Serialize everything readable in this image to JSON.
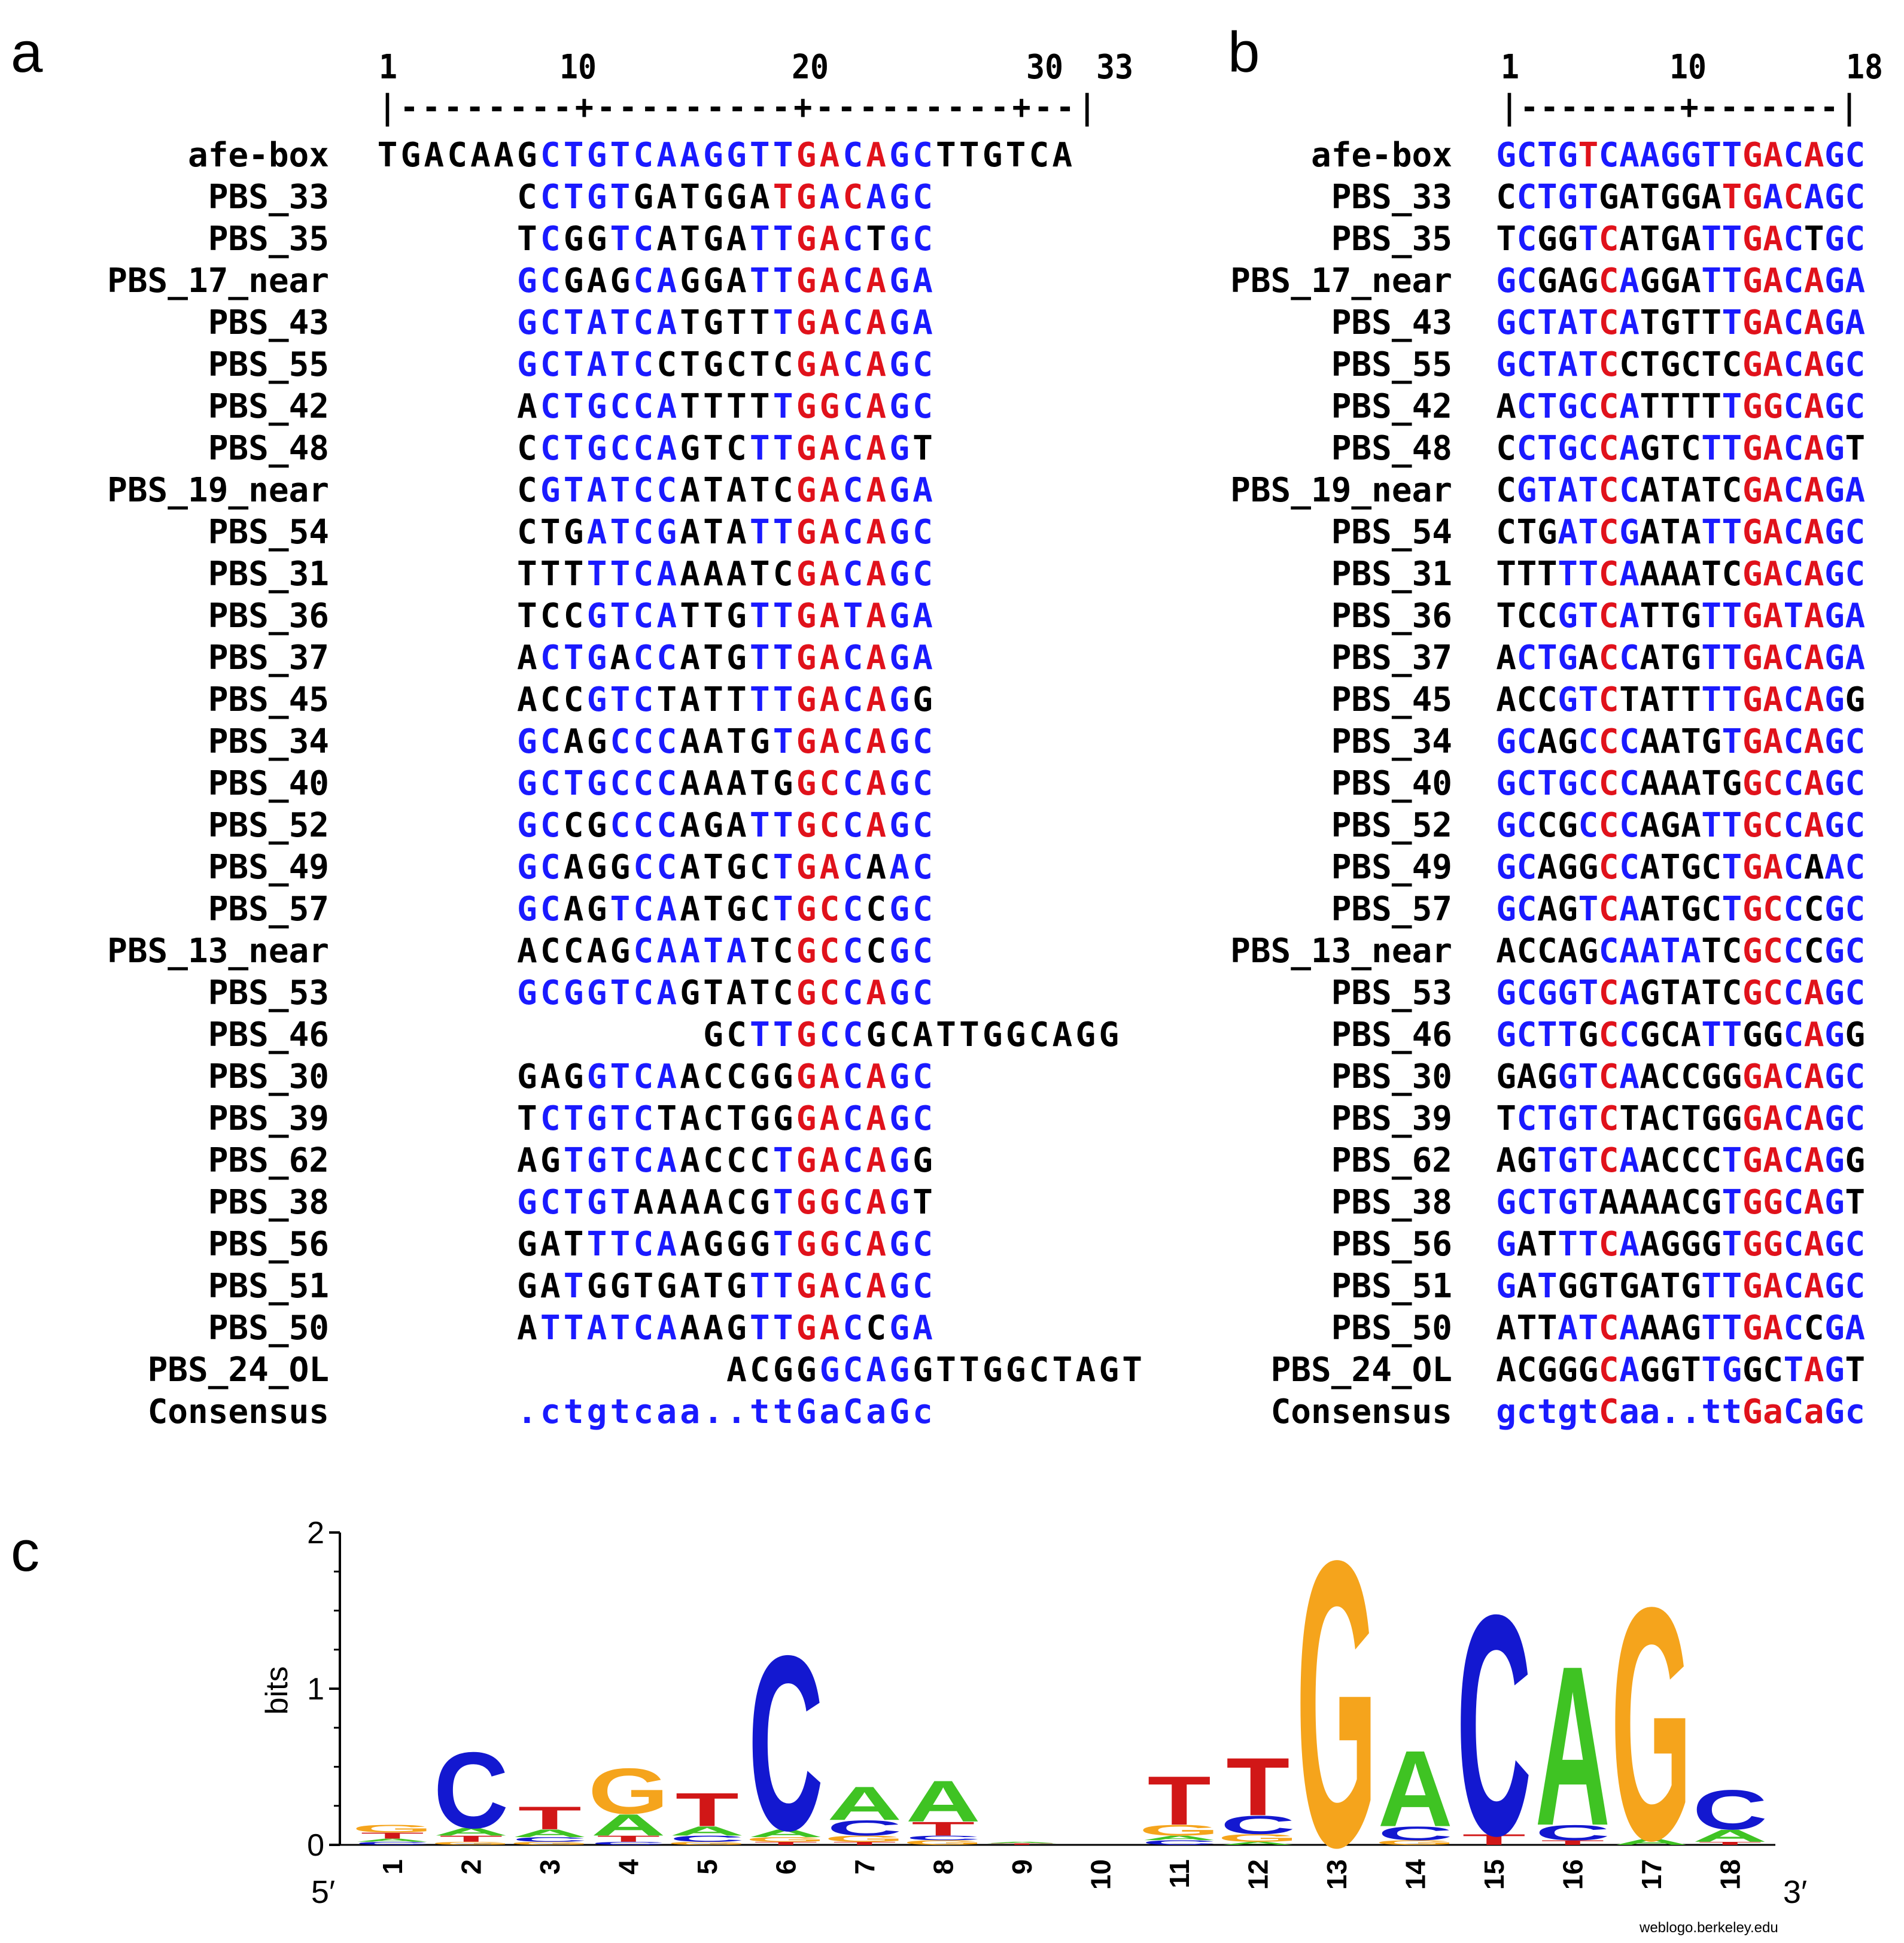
{
  "panels": {
    "a": "a",
    "b": "b",
    "c": "c"
  },
  "panel_a": {
    "ruler_numbers": [
      "1",
      "10",
      "20",
      "30",
      "33"
    ],
    "ruler_line": "|--------+---------+---------+--|",
    "labels": [
      "afe-box",
      "PBS_33",
      "PBS_35",
      "PBS_17_near",
      "PBS_43",
      "PBS_55",
      "PBS_42",
      "PBS_48",
      "PBS_19_near",
      "PBS_54",
      "PBS_31",
      "PBS_36",
      "PBS_37",
      "PBS_45",
      "PBS_34",
      "PBS_40",
      "PBS_52",
      "PBS_49",
      "PBS_57",
      "PBS_13_near",
      "PBS_53",
      "PBS_46",
      "PBS_30",
      "PBS_39",
      "PBS_62",
      "PBS_38",
      "PBS_56",
      "PBS_51",
      "PBS_50",
      "PBS_24_OL",
      "Consensus"
    ],
    "sequences": [
      {
        "offset": 0,
        "seq": "TGACAAGCTGTCAAGGTTGACAGCTTGTCA",
        "colors": "KKKKKKKBBBBBBBBBBBRRBRBBKKKKKK"
      },
      {
        "offset": 6,
        "seq": "CCTGTGATGGATGACAGC",
        "colors": "KBBBBKKKKKKRRBRBBB"
      },
      {
        "offset": 6,
        "seq": "TCGGTCATGATTGACTGC",
        "colors": "KBKKBBKKKKBBRRBKBB"
      },
      {
        "offset": 6,
        "seq": "GCGAGCAGGATTGACAGA",
        "colors": "BBKKKBBKKKBBRRBRBB"
      },
      {
        "offset": 6,
        "seq": "GCTATCATGTTTGACAGA",
        "colors": "BBBBBBBKKKKBRRBRBB"
      },
      {
        "offset": 6,
        "seq": "GCTATCCTGCTCGACAGC",
        "colors": "BBBBBBKKKKKKRRBRBB"
      },
      {
        "offset": 6,
        "seq": "ACTGCCATTTTTGGCAGC",
        "colors": "KBBBBBBKKKKBRRBRBB"
      },
      {
        "offset": 6,
        "seq": "CCTGCCAGTCTTGACAGT",
        "colors": "KBBBBBBKKKBBRRBRBK"
      },
      {
        "offset": 6,
        "seq": "CGTATCCATATCGACAGA",
        "colors": "KBBBBBBKKKKKRRBRBB"
      },
      {
        "offset": 6,
        "seq": "CTGATCGATATTGACAGC",
        "colors": "KKKBBBBKKKBBRRBRBB"
      },
      {
        "offset": 6,
        "seq": "TTTTTCAAAATCGACAGC",
        "colors": "KKKBBBBKKKKKRRBRBB"
      },
      {
        "offset": 6,
        "seq": "TCCGTCATTGTTGATAGA",
        "colors": "KKKBBBBKKKBBRRBRBB"
      },
      {
        "offset": 6,
        "seq": "ACTGACCATGTTGACAGA",
        "colors": "KBBBKBBKKKBBRRBRBB"
      },
      {
        "offset": 6,
        "seq": "ACCGTCTATTTTGACAGG",
        "colors": "KKKBBBKKKKBBRRBRBK"
      },
      {
        "offset": 6,
        "seq": "GCAGCCCAATGTGACAGC",
        "colors": "BBKKBBBKKKKBRRBRBB"
      },
      {
        "offset": 6,
        "seq": "GCTGCCCAAATGGCCAGC",
        "colors": "BBBBBBBKKKKKRRBRBB"
      },
      {
        "offset": 6,
        "seq": "GCCGCCCAGATTGCCAGC",
        "colors": "BBKKBBBKKKBBRRBRBB"
      },
      {
        "offset": 6,
        "seq": "GCAGGCCATGCTGACAAC",
        "colors": "BBKKKBBKKKKBRRBKBB"
      },
      {
        "offset": 6,
        "seq": "GCAGTCAATGCTGCCCGC",
        "colors": "BBKKBBBKKKKBRRBKBB"
      },
      {
        "offset": 6,
        "seq": "ACCAGCAATATCGCCCGC",
        "colors": "KKKKKBBBBBKKRRBKBB"
      },
      {
        "offset": 6,
        "seq": "GCGGTCAGTATCGCCAGC",
        "colors": "BBBBBBBKKKKKRRBRBB"
      },
      {
        "offset": 14,
        "seq": "GCTTGCCGCATTGGCAGG",
        "colors": "KKBBRBBKKKKKKKKKKK"
      },
      {
        "offset": 6,
        "seq": "GAGGTCAACCGGGACAGC",
        "colors": "KKKBBBBKKKKKRRBRBB"
      },
      {
        "offset": 6,
        "seq": "TCTGTCTACTGGGACAGC",
        "colors": "KBBBBBKKKKKKRRBRBB"
      },
      {
        "offset": 6,
        "seq": "AGTGTCAACCCTGACAGG",
        "colors": "KKBBBBBKKKKBRRBRBK"
      },
      {
        "offset": 6,
        "seq": "GCTGTAAAACGTGGCAGT",
        "colors": "BBBBBKKKKKKBRRBRBK"
      },
      {
        "offset": 6,
        "seq": "GATTTCAAGGGTGGCAGC",
        "colors": "KKKBBBBKKKKBRRBRBB"
      },
      {
        "offset": 6,
        "seq": "GATGGTGATGTTGACAGC",
        "colors": "KKBKKKKKKKBBRRBRBB"
      },
      {
        "offset": 6,
        "seq": "ATTATCAAAGTTGACCGA",
        "colors": "KBBBBBBKKKBBRRBKBB"
      },
      {
        "offset": 15,
        "seq": "ACGGGCAGGTTGGCTAGT",
        "colors": "KKKKBBBBKKKKKKKKKK"
      },
      {
        "offset": 6,
        "seq": ".ctgtcaa..ttGaCaGc",
        "colors": "BBBBBBBBBBBBBBBBBB"
      }
    ]
  },
  "panel_b": {
    "ruler_numbers": [
      "1",
      "10",
      "18"
    ],
    "ruler_line": "|--------+-------|",
    "labels": [
      "afe-box",
      "PBS_33",
      "PBS_35",
      "PBS_17_near",
      "PBS_43",
      "PBS_55",
      "PBS_42",
      "PBS_48",
      "PBS_19_near",
      "PBS_54",
      "PBS_31",
      "PBS_36",
      "PBS_37",
      "PBS_45",
      "PBS_34",
      "PBS_40",
      "PBS_52",
      "PBS_49",
      "PBS_57",
      "PBS_13_near",
      "PBS_53",
      "PBS_46",
      "PBS_30",
      "PBS_39",
      "PBS_62",
      "PBS_38",
      "PBS_56",
      "PBS_51",
      "PBS_50",
      "PBS_24_OL",
      "Consensus"
    ],
    "sequences": [
      {
        "seq": "GCTGTCAAGGTTGACAGC",
        "colors": "BBBBRBBBBBBBRRBRBB"
      },
      {
        "seq": "CCTGTGATGGATGACAGC",
        "colors": "KBBBBKKKKKKRRBRBBB"
      },
      {
        "seq": "TCGGTCATGATTGACTGC",
        "colors": "KBKKBRKKKKBBRRBKBB"
      },
      {
        "seq": "GCGAGCAGGATTGACAGA",
        "colors": "BBKKKRBKKKBBRRBRBB"
      },
      {
        "seq": "GCTATCATGTTTGACAGA",
        "colors": "BBBBBRBKKKKBRRBRBB"
      },
      {
        "seq": "GCTATCCTGCTCGACAGC",
        "colors": "BBBBBRKKKKKKRRBRBB"
      },
      {
        "seq": "ACTGCCATTTTTGGCAGC",
        "colors": "KBBBBRBKKKKBRRBRBB"
      },
      {
        "seq": "CCTGCCAGTCTTGACAGT",
        "colors": "KBBBBRBKKKBBRRBRBK"
      },
      {
        "seq": "CGTATCCATATCGACAGA",
        "colors": "KBBBBRBKKKKKRRBRBB"
      },
      {
        "seq": "CTGATCGATATTGACAGC",
        "colors": "KKKBBRBKKKBBRRBRBB"
      },
      {
        "seq": "TTTTTCAAAATCGACAGC",
        "colors": "KKKBBRBKKKKKRRBRBB"
      },
      {
        "seq": "TCCGTCATTGTTGATAGA",
        "colors": "KKKBBRBKKKBBRRBRBB"
      },
      {
        "seq": "ACTGACCATGTTGACAGA",
        "colors": "KBBBKRBKKKBBRRBRBB"
      },
      {
        "seq": "ACCGTCTATTTTGACAGG",
        "colors": "KKKBBRKKKKBBRRBRBK"
      },
      {
        "seq": "GCAGCCCAATGTGACAGC",
        "colors": "BBKKBRBKKKKBRRBRBB"
      },
      {
        "seq": "GCTGCCCAAATGGCCAGC",
        "colors": "BBBBBRBKKKKKRRBRBB"
      },
      {
        "seq": "GCCGCCCAGATTGCCAGC",
        "colors": "BBKKBRBKKKBBRRBRBB"
      },
      {
        "seq": "GCAGGCCATGCTGACAAC",
        "colors": "BBKKKRBKKKKBRRBKBB"
      },
      {
        "seq": "GCAGTCAATGCTGCCCGC",
        "colors": "BBKKBRBKKKKBRRBKBB"
      },
      {
        "seq": "ACCAGCAATATCGCCCGC",
        "colors": "KKKKKBBBBBKKRRBKBB"
      },
      {
        "seq": "GCGGTCAGTATCGCCAGC",
        "colors": "BBBBBRBKKKKKRRBRBB"
      },
      {
        "seq": "GCTTGCCGCATTGGCAGG",
        "colors": "BBBBKRBKKKBBKKBRBK"
      },
      {
        "seq": "GAGGTCAACCGGGACAGC",
        "colors": "KKKBBRBKKKKKRRBRBB"
      },
      {
        "seq": "TCTGTCTACTGGGACAGC",
        "colors": "KBBBBRKKKKKKRRBRBB"
      },
      {
        "seq": "AGTGTCAACCCTGACAGG",
        "colors": "KKBBBRBKKKKBRRBRBK"
      },
      {
        "seq": "GCTGTAAAACGTGGCAGT",
        "colors": "BBBBBKKKKKKBRRBRBK"
      },
      {
        "seq": "GATTTCAAGGGTGGCAGC",
        "colors": "BKKBBRBKKKKBRRBRBB"
      },
      {
        "seq": "GATGGTGATGTTGACAGC",
        "colors": "BKBKKKKKKKBBRRBRBB"
      },
      {
        "seq": "ATTATCAAAGTTGACCGA",
        "colors": "KKKBBRBKKKBBRRBKBB"
      },
      {
        "seq": "ACGGGCAGGTTGGCTAGT",
        "colors": "KKKKKRBKKKBBKKBRBK"
      },
      {
        "seq": "gctgtCaa..ttGaCaGc",
        "colors": "BBBBBRBBBBBBRRBRBB"
      }
    ]
  },
  "panel_c": {
    "ylabel": "bits",
    "yticks": [
      "0",
      "1",
      "2"
    ],
    "positions": [
      "1",
      "2",
      "3",
      "4",
      "5",
      "6",
      "7",
      "8",
      "9",
      "10",
      "11",
      "12",
      "13",
      "14",
      "15",
      "16",
      "17",
      "18"
    ],
    "end5": "5′",
    "end3": "3′",
    "credit": "weblogo.berkeley.edu",
    "colors": {
      "A": "#3fc323",
      "C": "#1318d0",
      "G": "#f5a41c",
      "T": "#d11717"
    },
    "stacks": [
      [
        [
          "C",
          0.02
        ],
        [
          "A",
          0.02
        ],
        [
          "T",
          0.04
        ],
        [
          "G",
          0.05
        ]
      ],
      [
        [
          "G",
          0.02
        ],
        [
          "T",
          0.04
        ],
        [
          "A",
          0.05
        ],
        [
          "C",
          0.5
        ]
      ],
      [
        [
          "G",
          0.02
        ],
        [
          "C",
          0.03
        ],
        [
          "A",
          0.05
        ],
        [
          "T",
          0.15
        ]
      ],
      [
        [
          "C",
          0.02
        ],
        [
          "T",
          0.04
        ],
        [
          "A",
          0.14
        ],
        [
          "G",
          0.3
        ]
      ],
      [
        [
          "G",
          0.02
        ],
        [
          "C",
          0.04
        ],
        [
          "A",
          0.06
        ],
        [
          "T",
          0.22
        ]
      ],
      [
        [
          "T",
          0.02
        ],
        [
          "G",
          0.03
        ],
        [
          "A",
          0.05
        ],
        [
          "C",
          1.15
        ]
      ],
      [
        [
          "T",
          0.02
        ],
        [
          "G",
          0.04
        ],
        [
          "C",
          0.1
        ],
        [
          "A",
          0.22
        ]
      ],
      [
        [
          "G",
          0.03
        ],
        [
          "C",
          0.03
        ],
        [
          "T",
          0.09
        ],
        [
          "A",
          0.27
        ]
      ],
      [
        [
          "T",
          0.01
        ],
        [
          "A",
          0.01
        ]
      ],
      [],
      [
        [
          "C",
          0.03
        ],
        [
          "A",
          0.03
        ],
        [
          "G",
          0.07
        ],
        [
          "T",
          0.32
        ]
      ],
      [
        [
          "A",
          0.02
        ],
        [
          "G",
          0.05
        ],
        [
          "C",
          0.12
        ],
        [
          "T",
          0.38
        ]
      ],
      [
        [
          "G",
          1.88
        ]
      ],
      [
        [
          "G",
          0.03
        ],
        [
          "C",
          0.09
        ],
        [
          "A",
          0.5
        ]
      ],
      [
        [
          "T",
          0.07
        ],
        [
          "C",
          1.45
        ]
      ],
      [
        [
          "T",
          0.03
        ],
        [
          "C",
          0.1
        ],
        [
          "A",
          1.05
        ]
      ],
      [
        [
          "A",
          0.04
        ],
        [
          "G",
          1.53
        ]
      ],
      [
        [
          "T",
          0.02
        ],
        [
          "A",
          0.08
        ],
        [
          "C",
          0.26
        ]
      ]
    ]
  }
}
